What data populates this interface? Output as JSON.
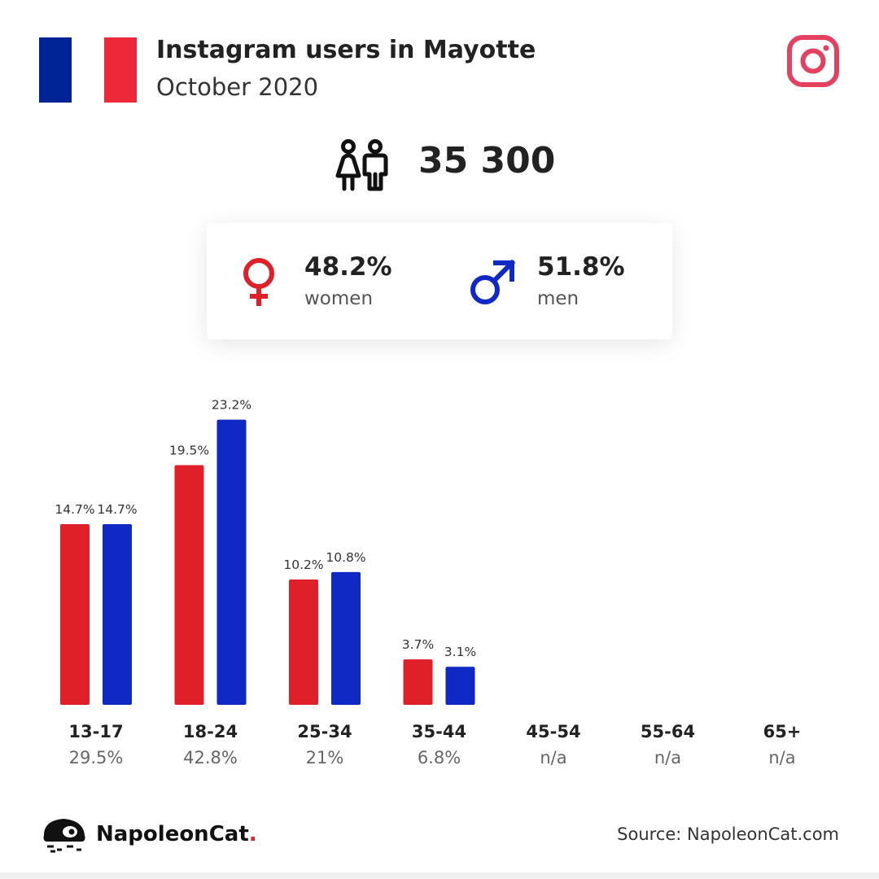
{
  "header": {
    "title": "Instagram users in Mayotte",
    "subtitle": "October 2020"
  },
  "colors": {
    "women": "#e02028",
    "men": "#1029c4",
    "flag_blue": "#002395",
    "flag_red": "#ed2939",
    "instagram": "#e4405f"
  },
  "icons": [
    "france-flag",
    "instagram-icon",
    "people-icon",
    "female-icon",
    "male-icon",
    "napoleoncat-logo"
  ],
  "total": {
    "value": "35 300"
  },
  "gender": {
    "women": {
      "pct": "48.2%",
      "label": "women"
    },
    "men": {
      "pct": "51.8%",
      "label": "men"
    }
  },
  "chart_data": {
    "type": "bar",
    "categories": [
      "13-17",
      "18-24",
      "25-34",
      "35-44",
      "45-54",
      "55-64",
      "65+"
    ],
    "category_totals": [
      "29.5%",
      "42.8%",
      "21%",
      "6.8%",
      "n/a",
      "n/a",
      "n/a"
    ],
    "series": [
      {
        "key": "women",
        "values": [
          14.7,
          19.5,
          10.2,
          3.7,
          null,
          null,
          null
        ],
        "labels": [
          "14.7%",
          "19.5%",
          "10.2%",
          "3.7%",
          "",
          "",
          ""
        ]
      },
      {
        "key": "men",
        "values": [
          14.7,
          23.2,
          10.8,
          3.1,
          null,
          null,
          null
        ],
        "labels": [
          "14.7%",
          "23.2%",
          "10.8%",
          "3.1%",
          "",
          "",
          ""
        ]
      }
    ],
    "ylim": [
      0,
      25
    ],
    "grid": false,
    "legend": "none"
  },
  "footer": {
    "brand": "NapoleonCat",
    "brand_dot": ".",
    "source": "Source: NapoleonCat.com"
  }
}
